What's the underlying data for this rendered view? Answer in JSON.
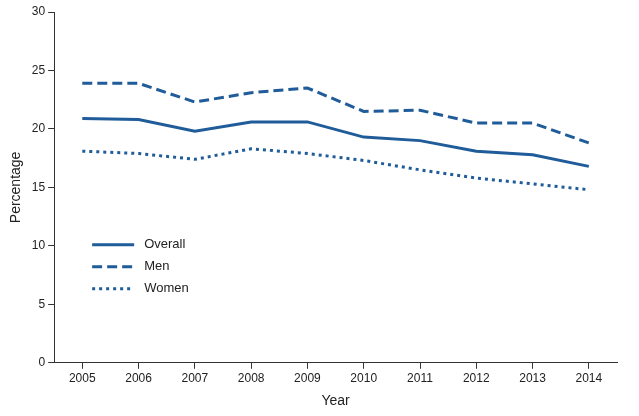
{
  "chart_data": {
    "type": "line",
    "x_label": "Year",
    "y_label": "Percentage",
    "categories": [
      "2005",
      "2006",
      "2007",
      "2008",
      "2009",
      "2010",
      "2011",
      "2012",
      "2013",
      "2014"
    ],
    "series": [
      {
        "name": "Overall",
        "color": "#1f5c99",
        "line_style": "solid",
        "values": [
          20.9,
          20.8,
          19.8,
          20.6,
          20.6,
          19.3,
          19.0,
          18.1,
          17.8,
          16.8
        ]
      },
      {
        "name": "Men",
        "color": "#1f5c99",
        "line_style": "dashed",
        "values": [
          23.9,
          23.9,
          22.3,
          23.1,
          23.5,
          21.5,
          21.6,
          20.5,
          20.5,
          18.8
        ]
      },
      {
        "name": "Women",
        "color": "#1f5c99",
        "line_style": "dotted",
        "values": [
          18.1,
          17.9,
          17.4,
          18.3,
          17.9,
          17.3,
          16.5,
          15.8,
          15.3,
          14.8
        ]
      }
    ],
    "ylim": [
      0,
      30
    ],
    "yticks": [
      0,
      5,
      10,
      15,
      20,
      25,
      30
    ],
    "grid": false,
    "legend": "lower left"
  }
}
